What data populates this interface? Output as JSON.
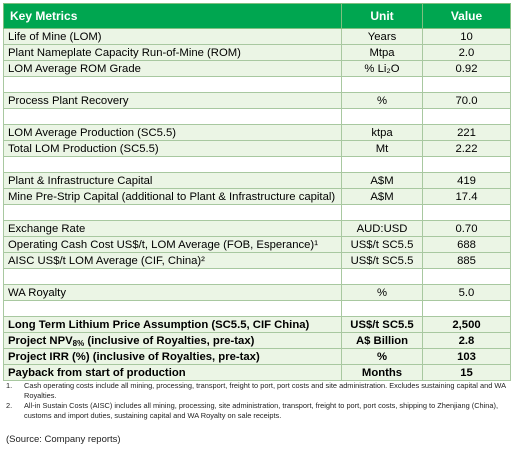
{
  "table": {
    "header": [
      "Key Metrics",
      "Unit",
      "Value"
    ],
    "groups": [
      [
        {
          "metric": "Life of Mine (LOM)",
          "unit": "Years",
          "value": "10"
        },
        {
          "metric": "Plant Nameplate Capacity Run-of-Mine (ROM)",
          "unit": "Mtpa",
          "value": "2.0"
        },
        {
          "metric": "LOM Average ROM Grade",
          "unit": "% Li₂O",
          "value": "0.92"
        }
      ],
      [
        {
          "metric": "Process Plant Recovery",
          "unit": "%",
          "value": "70.0"
        }
      ],
      [
        {
          "metric": "LOM Average Production (SC5.5)",
          "unit": "ktpa",
          "value": "221"
        },
        {
          "metric": "Total LOM Production (SC5.5)",
          "unit": "Mt",
          "value": "2.22"
        }
      ],
      [
        {
          "metric": "Plant & Infrastructure Capital",
          "unit": "A$M",
          "value": "419"
        },
        {
          "metric": "Mine Pre-Strip Capital (additional to Plant & Infrastructure capital)",
          "unit": "A$M",
          "value": "17.4"
        }
      ],
      [
        {
          "metric": "Exchange Rate",
          "unit": "AUD:USD",
          "value": "0.70"
        },
        {
          "metric": "Operating Cash Cost US$/t, LOM Average (FOB, Esperance)¹",
          "unit": "US$/t SC5.5",
          "value": "688"
        },
        {
          "metric": "AISC US$/t LOM Average (CIF, China)²",
          "unit": "US$/t SC5.5",
          "value": "885"
        }
      ],
      [
        {
          "metric": "WA Royalty",
          "unit": "%",
          "value": "5.0"
        }
      ]
    ],
    "bold_rows": [
      {
        "metric": "Long Term Lithium Price Assumption (SC5.5, CIF China)",
        "unit": "US$/t SC5.5",
        "value": "2,500"
      },
      {
        "metric": "Project NPV",
        "metric_sub": "8%",
        "metric_rest": " (inclusive of Royalties, pre-tax)",
        "unit": "A$ Billion",
        "value": "2.8"
      },
      {
        "metric": "Project IRR (%) (inclusive of Royalties, pre-tax)",
        "unit": "%",
        "value": "103"
      },
      {
        "metric": "Payback from start of production",
        "unit": "Months",
        "value": "15"
      }
    ],
    "footnotes": [
      {
        "marker": "1.",
        "text": "Cash operating costs include all mining, processing, transport, freight to port, port costs and site administration.  Excludes sustaining capital and WA Royalties."
      },
      {
        "marker": "2.",
        "text": "All-in Sustain Costs (AISC) includes all mining, processing, site administration, transport, freight to port, port costs, shipping to Zhenjiang (China), customs and import duties, sustaining capital and WA Royalty on sale receipts."
      }
    ],
    "source": "(Source: Company reports)"
  }
}
